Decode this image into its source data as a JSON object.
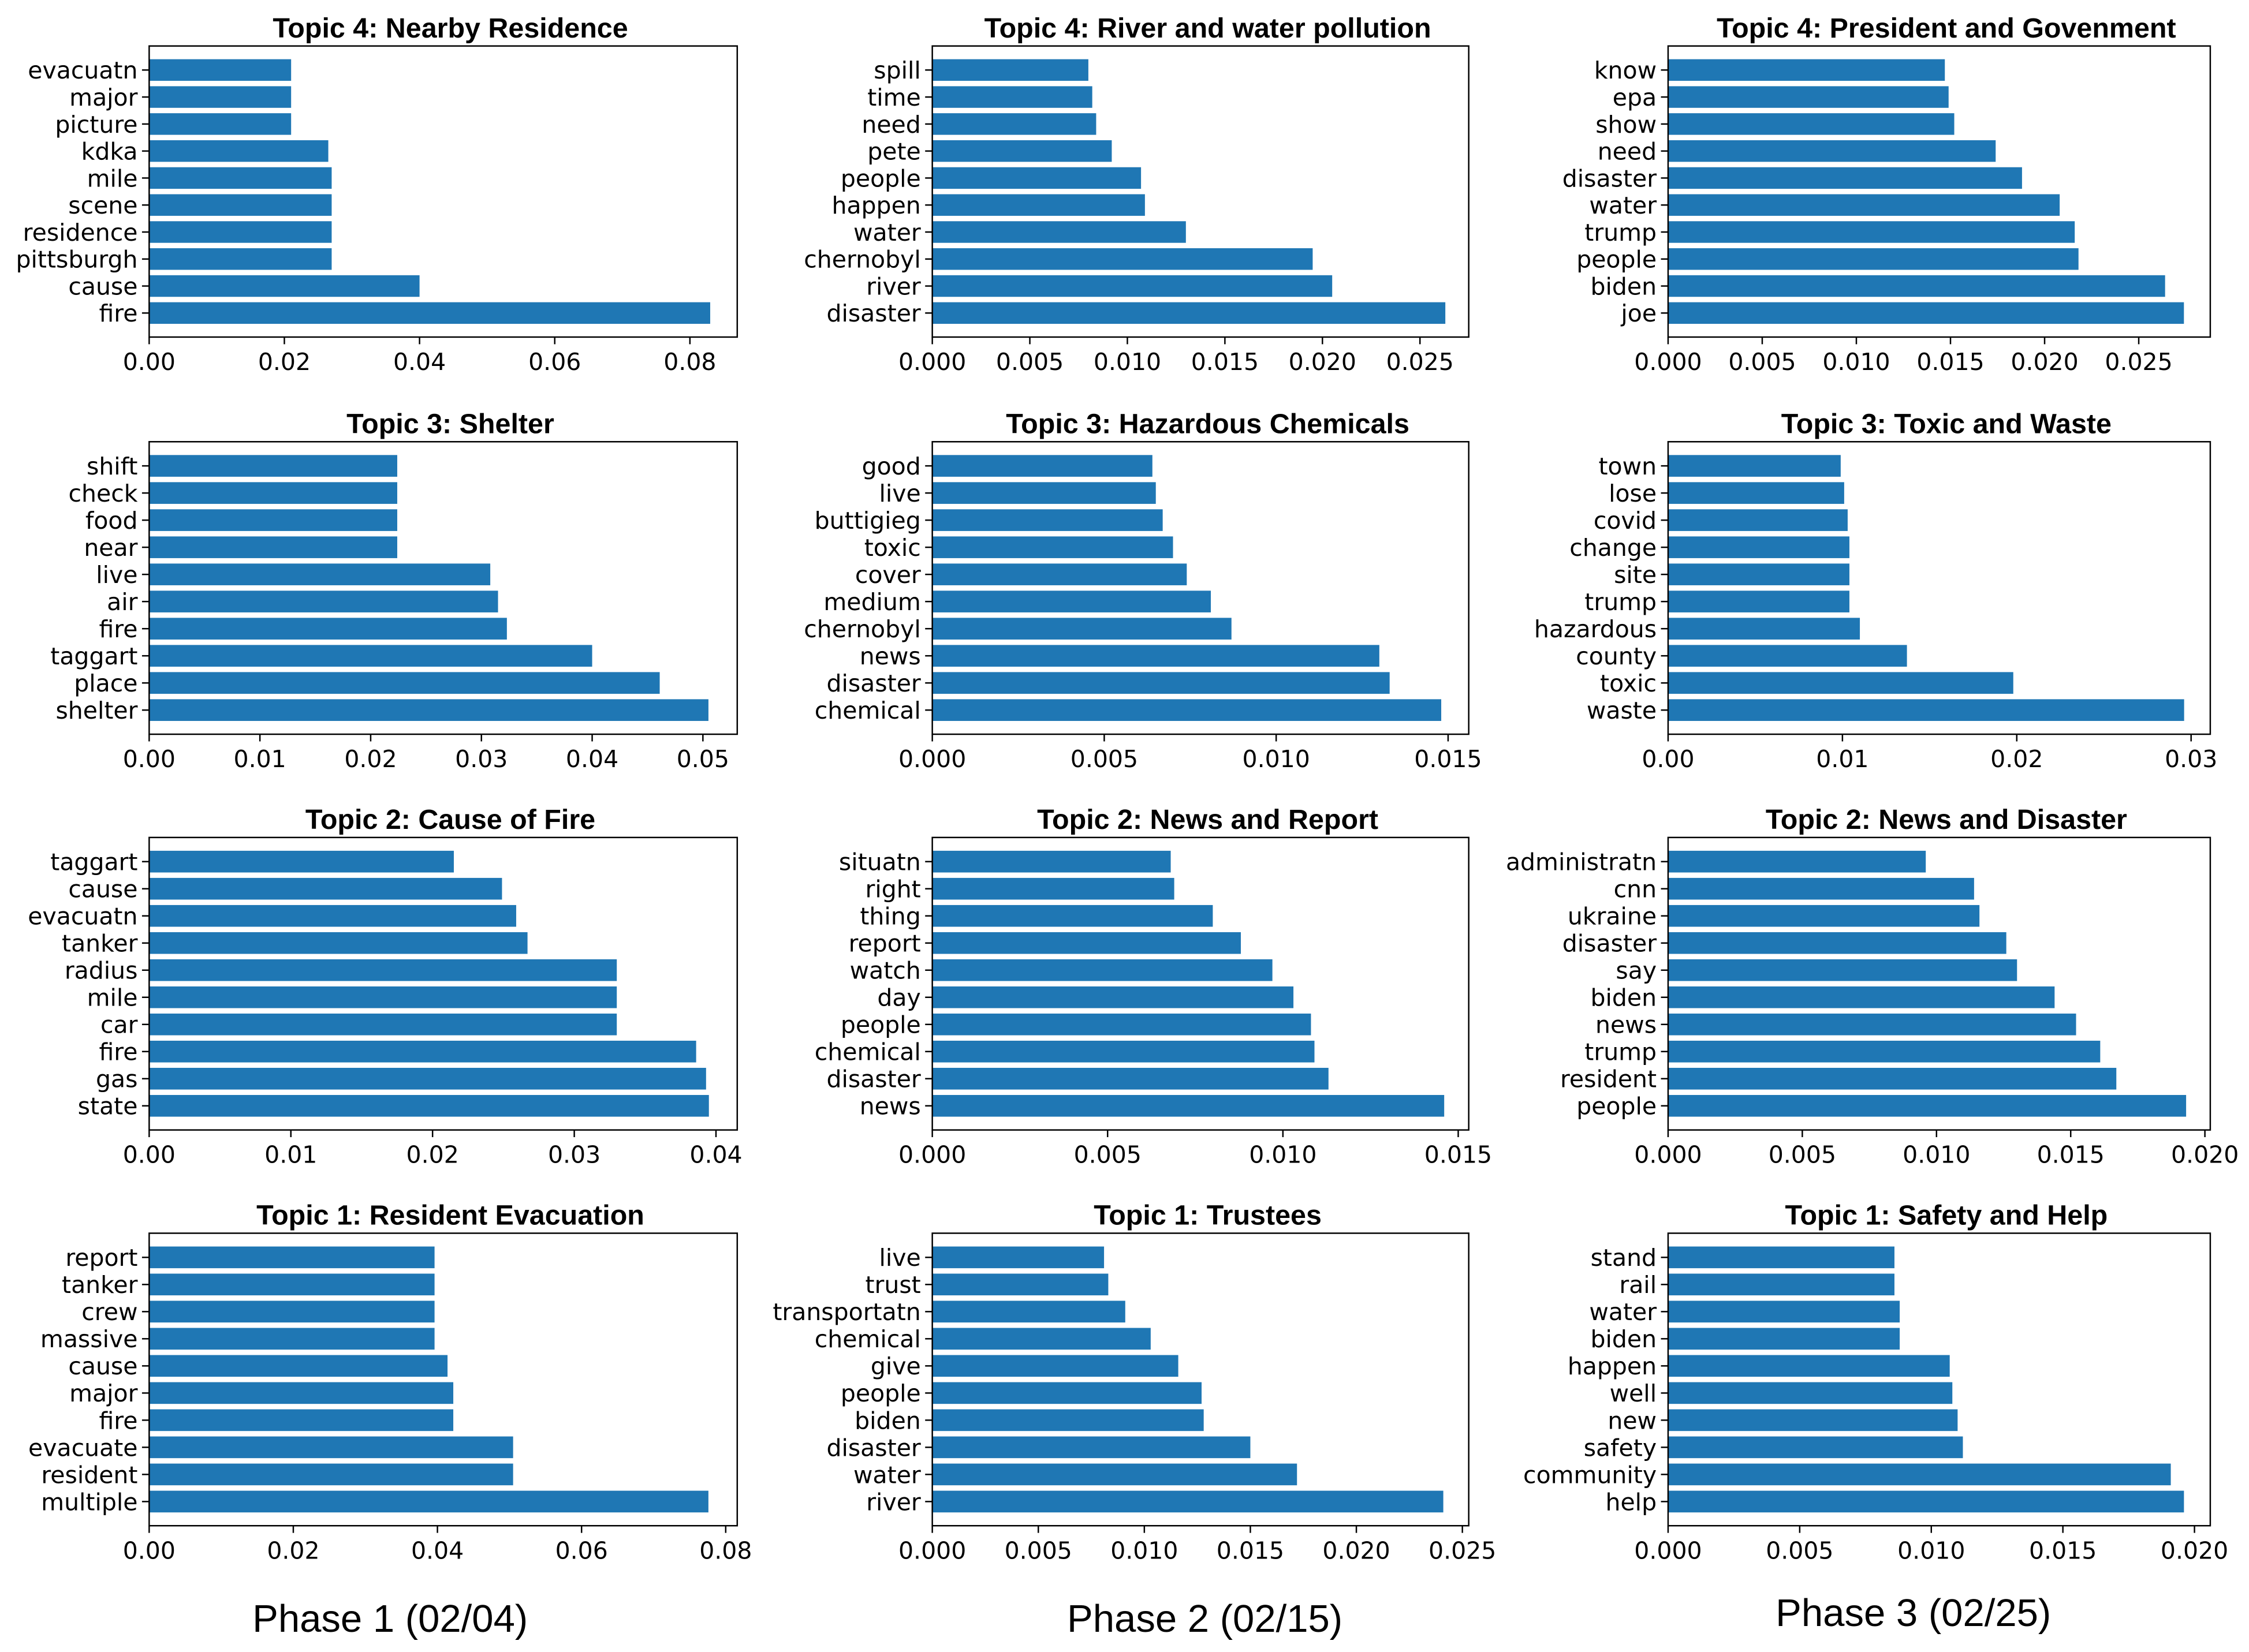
{
  "chart_data": [
    {
      "type": "bar",
      "orientation": "horizontal",
      "title": "Topic 4: Nearby Residence",
      "color": "#1f77b4",
      "categories": [
        "evacuatn",
        "major",
        "picture",
        "kdka",
        "mile",
        "scene",
        "residence",
        "pittsburgh",
        "cause",
        "fire"
      ],
      "values": [
        0.021,
        0.021,
        0.021,
        0.0265,
        0.027,
        0.027,
        0.027,
        0.027,
        0.04,
        0.083
      ],
      "xlim": [
        0,
        0.087
      ],
      "xticks": [
        {
          "value": 0,
          "label": "0.00"
        },
        0.02,
        0.04,
        0.06,
        0.08
      ]
    },
    {
      "type": "bar",
      "orientation": "horizontal",
      "title": "Topic 4: River and water pollution",
      "color": "#1f77b4",
      "categories": [
        "spill",
        "time",
        "need",
        "pete",
        "people",
        "happen",
        "water",
        "chernobyl",
        "river",
        "disaster"
      ],
      "values": [
        0.008,
        0.0082,
        0.0084,
        0.0092,
        0.0107,
        0.0109,
        0.013,
        0.0195,
        0.0205,
        0.0263
      ],
      "xlim": [
        0,
        0.0275
      ],
      "xticks": [
        {
          "value": 0,
          "label": "0.000"
        },
        0.005,
        {
          "value": 0.01,
          "label": "0.010"
        },
        0.015,
        {
          "value": 0.02,
          "label": "0.020"
        },
        0.025
      ]
    },
    {
      "type": "bar",
      "orientation": "horizontal",
      "title": "Topic 4: President and Govenment",
      "color": "#1f77b4",
      "categories": [
        "know",
        "epa",
        "show",
        "need",
        "disaster",
        "water",
        "trump",
        "people",
        "biden",
        "joe"
      ],
      "values": [
        0.0147,
        0.0149,
        0.0152,
        0.0174,
        0.0188,
        0.0208,
        0.0216,
        0.0218,
        0.0264,
        0.0274
      ],
      "xlim": [
        0,
        0.0288
      ],
      "xticks": [
        {
          "value": 0,
          "label": "0.000"
        },
        0.005,
        {
          "value": 0.01,
          "label": "0.010"
        },
        0.015,
        {
          "value": 0.02,
          "label": "0.020"
        },
        0.025
      ]
    },
    {
      "type": "bar",
      "orientation": "horizontal",
      "title": "Topic 3: Shelter",
      "color": "#1f77b4",
      "categories": [
        "shift",
        "check",
        "food",
        "near",
        "live",
        "air",
        "fire",
        "taggart",
        "place",
        "shelter"
      ],
      "values": [
        0.0224,
        0.0224,
        0.0224,
        0.0224,
        0.0308,
        0.0315,
        0.0323,
        0.04,
        0.0461,
        0.0505
      ],
      "xlim": [
        0,
        0.0531
      ],
      "xticks": [
        {
          "value": 0,
          "label": "0.00"
        },
        0.01,
        0.02,
        0.03,
        0.04,
        0.05
      ]
    },
    {
      "type": "bar",
      "orientation": "horizontal",
      "title": "Topic 3: Hazardous Chemicals",
      "color": "#1f77b4",
      "categories": [
        "good",
        "live",
        "buttigieg",
        "toxic",
        "cover",
        "medium",
        "chernobyl",
        "news",
        "disaster",
        "chemical"
      ],
      "values": [
        0.0064,
        0.0065,
        0.0067,
        0.007,
        0.0074,
        0.0081,
        0.0087,
        0.013,
        0.0133,
        0.0148
      ],
      "xlim": [
        0,
        0.0156
      ],
      "xticks": [
        {
          "value": 0,
          "label": "0.000"
        },
        0.005,
        {
          "value": 0.01,
          "label": "0.010"
        },
        0.015
      ]
    },
    {
      "type": "bar",
      "orientation": "horizontal",
      "title": "Topic 3: Toxic and Waste",
      "color": "#1f77b4",
      "categories": [
        "town",
        "lose",
        "covid",
        "change",
        "site",
        "trump",
        "hazardous",
        "county",
        "toxic",
        "waste"
      ],
      "values": [
        0.0099,
        0.0101,
        0.0103,
        0.0104,
        0.0104,
        0.0104,
        0.011,
        0.0137,
        0.0198,
        0.0296
      ],
      "xlim": [
        0,
        0.0311
      ],
      "xticks": [
        {
          "value": 0,
          "label": "0.00"
        },
        0.01,
        0.02,
        0.03
      ]
    },
    {
      "type": "bar",
      "orientation": "horizontal",
      "title": "Topic 2: Cause of Fire",
      "color": "#1f77b4",
      "categories": [
        "taggart",
        "cause",
        "evacuatn",
        "tanker",
        "radius",
        "mile",
        "car",
        "fire",
        "gas",
        "state"
      ],
      "values": [
        0.0215,
        0.0249,
        0.0259,
        0.0267,
        0.033,
        0.033,
        0.033,
        0.0386,
        0.0393,
        0.0395
      ],
      "xlim": [
        0,
        0.0415
      ],
      "xticks": [
        {
          "value": 0,
          "label": "0.00"
        },
        0.01,
        0.02,
        0.03,
        0.04
      ]
    },
    {
      "type": "bar",
      "orientation": "horizontal",
      "title": "Topic 2: News and Report",
      "color": "#1f77b4",
      "categories": [
        "situatn",
        "right",
        "thing",
        "report",
        "watch",
        "day",
        "people",
        "chemical",
        "disaster",
        "news"
      ],
      "values": [
        0.0068,
        0.0069,
        0.008,
        0.0088,
        0.0097,
        0.0103,
        0.0108,
        0.0109,
        0.0113,
        0.0146
      ],
      "xlim": [
        0,
        0.0153
      ],
      "xticks": [
        {
          "value": 0,
          "label": "0.000"
        },
        0.005,
        {
          "value": 0.01,
          "label": "0.010"
        },
        0.015
      ]
    },
    {
      "type": "bar",
      "orientation": "horizontal",
      "title": "Topic 2: News and Disaster",
      "color": "#1f77b4",
      "categories": [
        "administratn",
        "cnn",
        "ukraine",
        "disaster",
        "say",
        "biden",
        "news",
        "trump",
        "resident",
        "people"
      ],
      "values": [
        0.0096,
        0.0114,
        0.0116,
        0.0126,
        0.013,
        0.0144,
        0.0152,
        0.0161,
        0.0167,
        0.0193
      ],
      "xlim": [
        0,
        0.0202
      ],
      "xticks": [
        {
          "value": 0,
          "label": "0.000"
        },
        0.005,
        {
          "value": 0.01,
          "label": "0.010"
        },
        0.015,
        {
          "value": 0.02,
          "label": "0.020"
        }
      ]
    },
    {
      "type": "bar",
      "orientation": "horizontal",
      "title": "Topic 1: Resident Evacuation",
      "color": "#1f77b4",
      "categories": [
        "report",
        "tanker",
        "crew",
        "massive",
        "cause",
        "major",
        "fire",
        "evacuate",
        "resident",
        "multiple"
      ],
      "values": [
        0.0396,
        0.0396,
        0.0396,
        0.0396,
        0.0414,
        0.0422,
        0.0422,
        0.0505,
        0.0505,
        0.0776
      ],
      "xlim": [
        0,
        0.0816
      ],
      "xticks": [
        {
          "value": 0,
          "label": "0.00"
        },
        0.02,
        0.04,
        0.06,
        0.08
      ]
    },
    {
      "type": "bar",
      "orientation": "horizontal",
      "title": "Topic 1: Trustees",
      "color": "#1f77b4",
      "categories": [
        "live",
        "trust",
        "transportatn",
        "chemical",
        "give",
        "people",
        "biden",
        "disaster",
        "water",
        "river"
      ],
      "values": [
        0.0081,
        0.0083,
        0.0091,
        0.0103,
        0.0116,
        0.0127,
        0.0128,
        0.015,
        0.0172,
        0.0241
      ],
      "xlim": [
        0,
        0.0253
      ],
      "xticks": [
        {
          "value": 0,
          "label": "0.000"
        },
        0.005,
        {
          "value": 0.01,
          "label": "0.010"
        },
        0.015,
        {
          "value": 0.02,
          "label": "0.020"
        },
        0.025
      ]
    },
    {
      "type": "bar",
      "orientation": "horizontal",
      "title": "Topic 1: Safety and Help",
      "color": "#1f77b4",
      "categories": [
        "stand",
        "rail",
        "water",
        "biden",
        "happen",
        "well",
        "new",
        "safety",
        "community",
        "help"
      ],
      "values": [
        0.0086,
        0.0086,
        0.0088,
        0.0088,
        0.0107,
        0.0108,
        0.011,
        0.0112,
        0.0191,
        0.0196
      ],
      "xlim": [
        0,
        0.0206
      ],
      "xticks": [
        {
          "value": 0,
          "label": "0.000"
        },
        0.005,
        {
          "value": 0.01,
          "label": "0.010"
        },
        0.015,
        {
          "value": 0.02,
          "label": "0.020"
        }
      ]
    }
  ],
  "phase_labels": [
    "Phase 1 (02/04)",
    "Phase 2 (02/15)",
    "Phase 3 (02/25)"
  ]
}
